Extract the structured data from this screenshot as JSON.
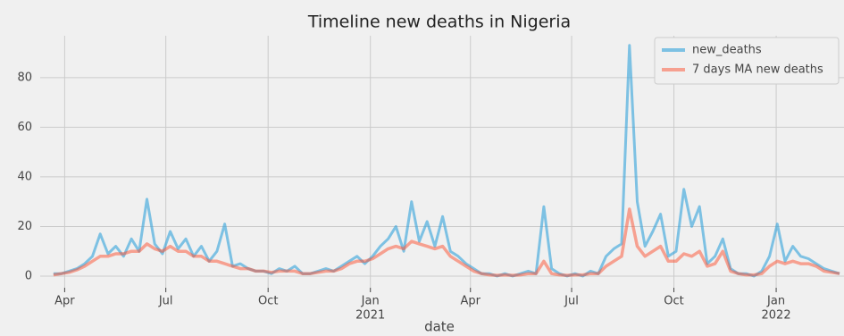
{
  "chart_data": {
    "type": "line",
    "title": "Timeline new deaths in Nigeria",
    "xlabel": "date",
    "x": [
      "2020-03-22",
      "2020-03-29",
      "2020-04-05",
      "2020-04-12",
      "2020-04-19",
      "2020-04-26",
      "2020-05-03",
      "2020-05-10",
      "2020-05-17",
      "2020-05-24",
      "2020-05-31",
      "2020-06-07",
      "2020-06-14",
      "2020-06-21",
      "2020-06-28",
      "2020-07-05",
      "2020-07-12",
      "2020-07-19",
      "2020-07-26",
      "2020-08-02",
      "2020-08-09",
      "2020-08-16",
      "2020-08-23",
      "2020-08-30",
      "2020-09-06",
      "2020-09-13",
      "2020-09-20",
      "2020-09-27",
      "2020-10-04",
      "2020-10-11",
      "2020-10-18",
      "2020-10-25",
      "2020-11-01",
      "2020-11-08",
      "2020-11-15",
      "2020-11-22",
      "2020-11-29",
      "2020-12-06",
      "2020-12-13",
      "2020-12-20",
      "2020-12-27",
      "2021-01-03",
      "2021-01-10",
      "2021-01-17",
      "2021-01-24",
      "2021-01-31",
      "2021-02-07",
      "2021-02-14",
      "2021-02-21",
      "2021-02-28",
      "2021-03-07",
      "2021-03-14",
      "2021-03-21",
      "2021-03-28",
      "2021-04-04",
      "2021-04-11",
      "2021-04-18",
      "2021-04-25",
      "2021-05-02",
      "2021-05-09",
      "2021-05-16",
      "2021-05-23",
      "2021-05-30",
      "2021-06-06",
      "2021-06-13",
      "2021-06-20",
      "2021-06-27",
      "2021-07-04",
      "2021-07-11",
      "2021-07-18",
      "2021-07-25",
      "2021-08-01",
      "2021-08-08",
      "2021-08-15",
      "2021-08-22",
      "2021-08-29",
      "2021-09-05",
      "2021-09-12",
      "2021-09-19",
      "2021-09-26",
      "2021-10-03",
      "2021-10-10",
      "2021-10-17",
      "2021-10-24",
      "2021-10-31",
      "2021-11-07",
      "2021-11-14",
      "2021-11-21",
      "2021-11-28",
      "2021-12-05",
      "2021-12-12",
      "2021-12-19",
      "2021-12-26",
      "2022-01-02",
      "2022-01-09",
      "2022-01-16",
      "2022-01-23",
      "2022-01-30",
      "2022-02-06",
      "2022-02-13",
      "2022-02-20",
      "2022-02-27"
    ],
    "series": [
      {
        "name": "new_deaths",
        "color": "#30a2da",
        "values": [
          1,
          1,
          2,
          3,
          5,
          8,
          17,
          9,
          12,
          8,
          15,
          10,
          31,
          13,
          9,
          18,
          11,
          15,
          8,
          12,
          6,
          10,
          21,
          4,
          5,
          3,
          2,
          2,
          1,
          3,
          2,
          4,
          1,
          1,
          2,
          3,
          2,
          4,
          6,
          8,
          5,
          8,
          12,
          15,
          20,
          10,
          30,
          14,
          22,
          12,
          24,
          10,
          8,
          5,
          3,
          1,
          1,
          0,
          1,
          0,
          1,
          2,
          1,
          28,
          3,
          1,
          0,
          1,
          0,
          2,
          1,
          8,
          11,
          13,
          93,
          30,
          12,
          18,
          25,
          8,
          10,
          35,
          20,
          28,
          5,
          8,
          15,
          3,
          1,
          1,
          0,
          2,
          8,
          21,
          6,
          12,
          8,
          7,
          5,
          3,
          2,
          1
        ]
      },
      {
        "name": "7 days MA new deaths",
        "color": "#fc4f30",
        "values": [
          0.5,
          1,
          1.5,
          2.5,
          4,
          6,
          8,
          8,
          9,
          9,
          10,
          10,
          13,
          11,
          10,
          12,
          10,
          10,
          8,
          8,
          6,
          6,
          5,
          4,
          3,
          3,
          2,
          2,
          1.5,
          2,
          2,
          2,
          1,
          1,
          1.5,
          2,
          2,
          3,
          5,
          6,
          6,
          7,
          9,
          11,
          12,
          11,
          14,
          13,
          12,
          11,
          12,
          8,
          6,
          4,
          2,
          1,
          0.5,
          0.3,
          0.5,
          0.3,
          0.5,
          1,
          1,
          6,
          1,
          0.5,
          0.3,
          0.5,
          0.5,
          1,
          1,
          4,
          6,
          8,
          27,
          12,
          8,
          10,
          12,
          6,
          6,
          9,
          8,
          10,
          4,
          5,
          10,
          2,
          1,
          0.5,
          0.5,
          1,
          4,
          6,
          5,
          6,
          5,
          5,
          4,
          2,
          1.5,
          1
        ]
      }
    ],
    "xlim": [
      "2020-03-10",
      "2022-03-03"
    ],
    "xticks": [
      {
        "value": "2020-04-01",
        "label": "Apr"
      },
      {
        "value": "2020-07-01",
        "label": "Jul"
      },
      {
        "value": "2020-10-01",
        "label": "Oct"
      },
      {
        "value": "2021-01-01",
        "label": "Jan",
        "year": "2021"
      },
      {
        "value": "2021-04-01",
        "label": "Apr"
      },
      {
        "value": "2021-07-01",
        "label": "Jul"
      },
      {
        "value": "2021-10-01",
        "label": "Oct"
      },
      {
        "value": "2022-01-01",
        "label": "Jan",
        "year": "2022"
      }
    ],
    "ylim": [
      -4.7,
      96.9
    ],
    "yticks": [
      0,
      20,
      40,
      60,
      80
    ],
    "grid": true,
    "legend": "upper right"
  }
}
